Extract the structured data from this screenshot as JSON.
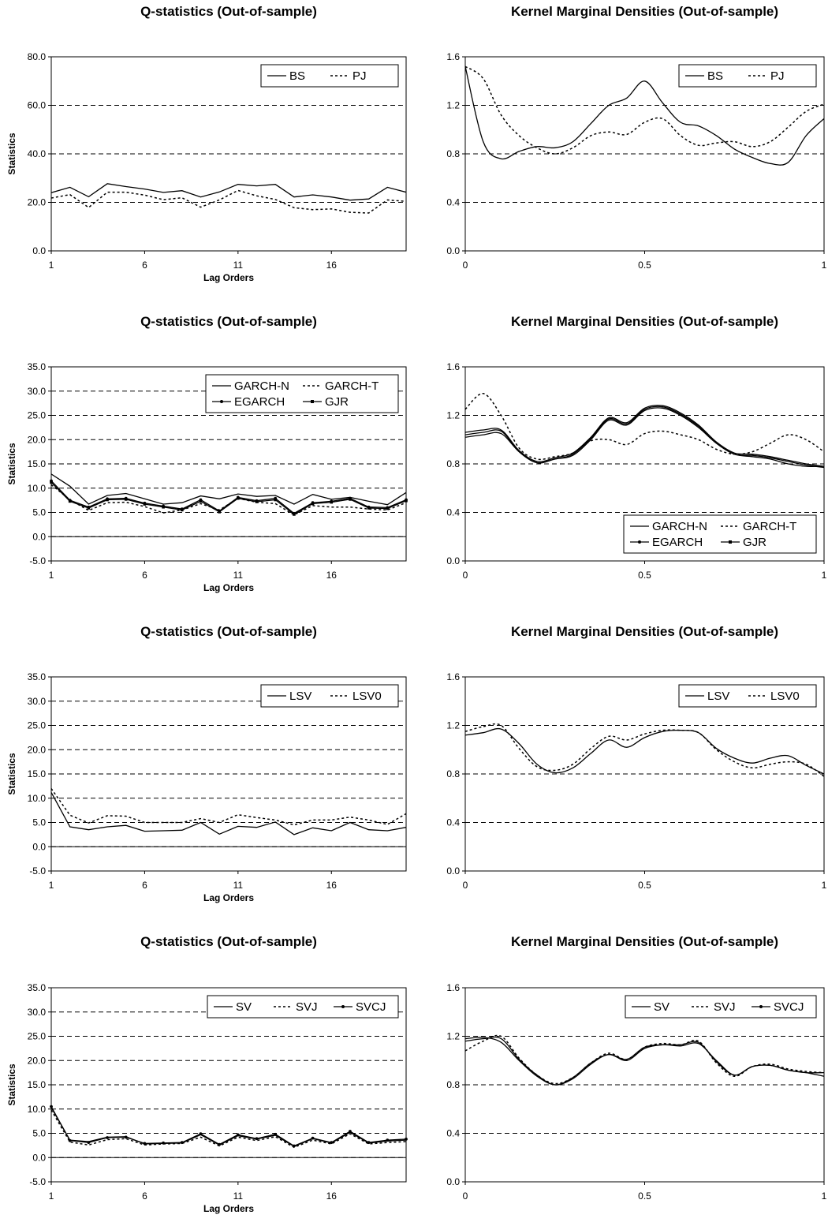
{
  "chart_data": [
    {
      "id": "q1",
      "type": "line",
      "title": "Q-statistics (Out-of-sample)",
      "xlabel": "Lag Orders",
      "ylabel": "Statistics",
      "xlim": [
        1,
        20
      ],
      "ylim": [
        0,
        80
      ],
      "yticks": [
        "0.0",
        "20.0",
        "40.0",
        "60.0",
        "80.0"
      ],
      "xticks": [
        "1",
        "6",
        "11",
        "16"
      ],
      "xtick_values": [
        1,
        6,
        11,
        16
      ],
      "grid": "horizontal-dashed",
      "legend": "top-right",
      "legend_cols": 2,
      "series": [
        {
          "name": "BS",
          "style": "solid",
          "values": [
            24.0,
            26.2,
            22.3,
            27.7,
            26.5,
            25.5,
            24.1,
            24.8,
            22.2,
            24.3,
            27.4,
            26.8,
            27.4,
            22.2,
            23.1,
            22.2,
            20.9,
            21.4,
            26.2,
            24.2
          ]
        },
        {
          "name": "PJ",
          "style": "dotted",
          "values": [
            21.8,
            23.2,
            17.9,
            24.2,
            24.2,
            23.0,
            21.1,
            21.9,
            18.0,
            21.0,
            24.9,
            22.7,
            21.2,
            17.8,
            17.0,
            17.3,
            15.9,
            15.6,
            21.0,
            20.4
          ]
        }
      ]
    },
    {
      "id": "k1",
      "type": "line",
      "title": "Kernel Marginal Densities (Out-of-sample)",
      "xlabel": "",
      "ylabel": "",
      "xlim": [
        0,
        1
      ],
      "ylim": [
        0,
        1.6
      ],
      "yticks": [
        "0.0",
        "0.4",
        "0.8",
        "1.2",
        "1.6"
      ],
      "xticks": [
        "0",
        "0.5",
        "1"
      ],
      "xtick_values": [
        0,
        0.5,
        1
      ],
      "grid": "horizontal-dashed",
      "legend": "top-right",
      "legend_cols": 2,
      "x": [
        0,
        0.05,
        0.1,
        0.15,
        0.2,
        0.25,
        0.3,
        0.35,
        0.4,
        0.45,
        0.5,
        0.55,
        0.6,
        0.65,
        0.7,
        0.75,
        0.8,
        0.85,
        0.9,
        0.95,
        1.0
      ],
      "series": [
        {
          "name": "BS",
          "style": "solid",
          "values": [
            1.52,
            0.9,
            0.76,
            0.82,
            0.86,
            0.85,
            0.9,
            1.05,
            1.2,
            1.26,
            1.4,
            1.22,
            1.06,
            1.03,
            0.95,
            0.84,
            0.77,
            0.72,
            0.73,
            0.95,
            1.09
          ]
        },
        {
          "name": "PJ",
          "style": "dotted",
          "values": [
            1.52,
            1.42,
            1.12,
            0.95,
            0.85,
            0.8,
            0.85,
            0.95,
            0.98,
            0.96,
            1.06,
            1.09,
            0.95,
            0.87,
            0.89,
            0.9,
            0.86,
            0.9,
            1.02,
            1.15,
            1.21
          ]
        }
      ]
    },
    {
      "id": "q2",
      "type": "line",
      "title": "Q-statistics (Out-of-sample)",
      "xlabel": "Lag Orders",
      "ylabel": "Statistics",
      "xlim": [
        1,
        20
      ],
      "ylim": [
        -5,
        35
      ],
      "yticks": [
        "-5.0",
        "0.0",
        "5.0",
        "10.0",
        "15.0",
        "20.0",
        "25.0",
        "30.0",
        "35.0"
      ],
      "xticks": [
        "1",
        "6",
        "11",
        "16"
      ],
      "xtick_values": [
        1,
        6,
        11,
        16
      ],
      "grid": "horizontal-dashed",
      "zero_line": true,
      "legend": "top-right",
      "legend_cols": 2,
      "series": [
        {
          "name": "GARCH-N",
          "style": "solid",
          "values": [
            12.9,
            10.4,
            6.7,
            8.5,
            8.9,
            7.8,
            6.7,
            7.0,
            8.4,
            7.8,
            8.8,
            8.3,
            8.5,
            6.7,
            8.7,
            7.7,
            8.1,
            7.3,
            6.6,
            9.1
          ]
        },
        {
          "name": "GARCH-T",
          "style": "dotted",
          "values": [
            10.7,
            7.6,
            5.4,
            7.0,
            7.1,
            6.2,
            4.9,
            5.5,
            6.8,
            5.5,
            7.9,
            7.1,
            6.8,
            4.5,
            6.4,
            6.1,
            6.1,
            5.7,
            5.5,
            7.0
          ]
        },
        {
          "name": "EGARCH",
          "style": "solid-marker",
          "values": [
            11.5,
            7.5,
            6.1,
            7.8,
            7.9,
            6.9,
            6.3,
            5.7,
            7.6,
            5.3,
            8.1,
            7.4,
            7.9,
            4.8,
            7.0,
            7.3,
            7.9,
            6.1,
            6.0,
            7.6
          ]
        },
        {
          "name": "GJR",
          "style": "solid-square",
          "values": [
            11.2,
            7.3,
            5.9,
            7.6,
            7.7,
            6.7,
            6.1,
            5.5,
            7.3,
            5.1,
            7.9,
            7.2,
            7.6,
            4.6,
            6.8,
            7.1,
            7.7,
            5.9,
            5.8,
            7.4
          ]
        }
      ]
    },
    {
      "id": "k2",
      "type": "line",
      "title": "Kernel Marginal Densities (Out-of-sample)",
      "xlabel": "",
      "ylabel": "",
      "xlim": [
        0,
        1
      ],
      "ylim": [
        0,
        1.6
      ],
      "yticks": [
        "0.0",
        "0.4",
        "0.8",
        "1.2",
        "1.6"
      ],
      "xticks": [
        "0",
        "0.5",
        "1"
      ],
      "xtick_values": [
        0,
        0.5,
        1
      ],
      "grid": "horizontal-dashed",
      "legend": "bottom-right",
      "legend_cols": 2,
      "x": [
        0,
        0.05,
        0.1,
        0.15,
        0.2,
        0.25,
        0.3,
        0.35,
        0.4,
        0.45,
        0.5,
        0.55,
        0.6,
        0.65,
        0.7,
        0.75,
        0.8,
        0.85,
        0.9,
        0.95,
        1.0
      ],
      "series": [
        {
          "name": "GARCH-N",
          "style": "solid",
          "values": [
            1.02,
            1.04,
            1.05,
            0.9,
            0.81,
            0.84,
            0.87,
            1.0,
            1.16,
            1.12,
            1.24,
            1.26,
            1.2,
            1.1,
            0.97,
            0.88,
            0.86,
            0.84,
            0.8,
            0.78,
            0.78
          ]
        },
        {
          "name": "GARCH-T",
          "style": "dotted",
          "values": [
            1.25,
            1.38,
            1.2,
            0.93,
            0.84,
            0.86,
            0.89,
            0.99,
            1.0,
            0.96,
            1.05,
            1.07,
            1.04,
            1.0,
            0.92,
            0.88,
            0.9,
            0.97,
            1.04,
            1.0,
            0.9
          ]
        },
        {
          "name": "EGARCH",
          "style": "solid-marker",
          "values": [
            1.06,
            1.08,
            1.08,
            0.91,
            0.82,
            0.85,
            0.89,
            1.02,
            1.18,
            1.14,
            1.26,
            1.28,
            1.22,
            1.12,
            0.98,
            0.89,
            0.88,
            0.86,
            0.83,
            0.8,
            0.78
          ]
        },
        {
          "name": "GJR",
          "style": "solid-square",
          "values": [
            1.04,
            1.06,
            1.07,
            0.9,
            0.81,
            0.84,
            0.88,
            1.01,
            1.17,
            1.13,
            1.25,
            1.27,
            1.21,
            1.11,
            0.97,
            0.88,
            0.87,
            0.85,
            0.82,
            0.79,
            0.77
          ]
        }
      ]
    },
    {
      "id": "q3",
      "type": "line",
      "title": "Q-statistics (Out-of-sample)",
      "xlabel": "Lag Orders",
      "ylabel": "Statistics",
      "xlim": [
        1,
        20
      ],
      "ylim": [
        -5,
        35
      ],
      "yticks": [
        "-5.0",
        "0.0",
        "5.0",
        "10.0",
        "15.0",
        "20.0",
        "25.0",
        "30.0",
        "35.0"
      ],
      "xticks": [
        "1",
        "6",
        "11",
        "16"
      ],
      "xtick_values": [
        1,
        6,
        11,
        16
      ],
      "grid": "horizontal-dashed",
      "zero_line": true,
      "legend": "top-right",
      "legend_cols": 2,
      "series": [
        {
          "name": "LSV",
          "style": "solid",
          "values": [
            11.2,
            4.1,
            3.5,
            4.1,
            4.4,
            3.2,
            3.3,
            3.4,
            5.0,
            2.6,
            4.2,
            4.0,
            5.1,
            2.5,
            3.9,
            3.3,
            5.0,
            3.5,
            3.3,
            4.0
          ]
        },
        {
          "name": "LSV0",
          "style": "dotted",
          "values": [
            12.0,
            6.5,
            4.9,
            6.4,
            6.3,
            5.0,
            5.0,
            5.0,
            5.8,
            5.0,
            6.6,
            6.0,
            5.5,
            4.5,
            5.5,
            5.5,
            6.1,
            5.5,
            4.6,
            6.8
          ]
        }
      ]
    },
    {
      "id": "k3",
      "type": "line",
      "title": "Kernel Marginal Densities (Out-of-sample)",
      "xlabel": "",
      "ylabel": "",
      "xlim": [
        0,
        1
      ],
      "ylim": [
        0,
        1.6
      ],
      "yticks": [
        "0.0",
        "0.4",
        "0.8",
        "1.2",
        "1.6"
      ],
      "xticks": [
        "0",
        "0.5",
        "1"
      ],
      "xtick_values": [
        0,
        0.5,
        1
      ],
      "grid": "horizontal-dashed",
      "legend": "top-right",
      "legend_cols": 2,
      "x": [
        0,
        0.05,
        0.1,
        0.15,
        0.2,
        0.25,
        0.3,
        0.35,
        0.4,
        0.45,
        0.5,
        0.55,
        0.6,
        0.65,
        0.7,
        0.75,
        0.8,
        0.85,
        0.9,
        0.95,
        1.0
      ],
      "series": [
        {
          "name": "LSV",
          "style": "solid",
          "values": [
            1.12,
            1.14,
            1.17,
            1.05,
            0.88,
            0.81,
            0.85,
            0.97,
            1.08,
            1.02,
            1.1,
            1.15,
            1.16,
            1.14,
            1.01,
            0.93,
            0.89,
            0.93,
            0.95,
            0.87,
            0.8
          ]
        },
        {
          "name": "LSV0",
          "style": "dotted",
          "values": [
            1.15,
            1.19,
            1.2,
            1.01,
            0.86,
            0.83,
            0.88,
            1.01,
            1.11,
            1.08,
            1.13,
            1.16,
            1.16,
            1.14,
            1.0,
            0.9,
            0.85,
            0.88,
            0.9,
            0.88,
            0.78
          ]
        }
      ]
    },
    {
      "id": "q4",
      "type": "line",
      "title": "Q-statistics (Out-of-sample)",
      "xlabel": "Lag Orders",
      "ylabel": "Statistics",
      "xlim": [
        1,
        20
      ],
      "ylim": [
        -5,
        35
      ],
      "yticks": [
        "-5.0",
        "0.0",
        "5.0",
        "10.0",
        "15.0",
        "20.0",
        "25.0",
        "30.0",
        "35.0"
      ],
      "xticks": [
        "1",
        "6",
        "11",
        "16"
      ],
      "xtick_values": [
        1,
        6,
        11,
        16
      ],
      "grid": "horizontal-dashed",
      "zero_line": true,
      "legend": "top-right",
      "legend_cols": 3,
      "series": [
        {
          "name": "SV",
          "style": "solid",
          "values": [
            10.3,
            3.6,
            3.3,
            4.2,
            4.3,
            2.8,
            2.9,
            3.0,
            4.7,
            2.6,
            4.5,
            3.8,
            4.6,
            2.3,
            3.9,
            3.0,
            5.2,
            3.0,
            3.4,
            3.6
          ]
        },
        {
          "name": "SVJ",
          "style": "dotted",
          "values": [
            9.8,
            3.2,
            2.6,
            3.7,
            3.9,
            2.6,
            2.8,
            2.9,
            4.2,
            2.4,
            4.2,
            3.5,
            4.3,
            2.1,
            3.6,
            2.8,
            4.9,
            2.8,
            3.1,
            3.3
          ]
        },
        {
          "name": "SVCJ",
          "style": "solid-marker",
          "values": [
            10.5,
            3.5,
            3.1,
            4.1,
            4.2,
            2.9,
            3.0,
            3.1,
            4.9,
            2.7,
            4.7,
            3.9,
            4.8,
            2.4,
            4.0,
            3.1,
            5.4,
            3.1,
            3.6,
            3.8
          ]
        }
      ]
    },
    {
      "id": "k4",
      "type": "line",
      "title": "Kernel Marginal Densities (Out-of-sample)",
      "xlabel": "",
      "ylabel": "",
      "xlim": [
        0,
        1
      ],
      "ylim": [
        0,
        1.6
      ],
      "yticks": [
        "0.0",
        "0.4",
        "0.8",
        "1.2",
        "1.6"
      ],
      "xticks": [
        "0",
        "0.5",
        "1"
      ],
      "xtick_values": [
        0,
        0.5,
        1
      ],
      "grid": "horizontal-dashed",
      "legend": "top-right",
      "legend_cols": 3,
      "x": [
        0,
        0.05,
        0.1,
        0.15,
        0.2,
        0.25,
        0.3,
        0.35,
        0.4,
        0.45,
        0.5,
        0.55,
        0.6,
        0.65,
        0.7,
        0.75,
        0.8,
        0.85,
        0.9,
        0.95,
        1.0
      ],
      "series": [
        {
          "name": "SV",
          "style": "solid",
          "values": [
            1.18,
            1.19,
            1.15,
            1.0,
            0.87,
            0.8,
            0.85,
            0.97,
            1.05,
            1.0,
            1.1,
            1.13,
            1.12,
            1.14,
            1.0,
            0.88,
            0.95,
            0.96,
            0.92,
            0.9,
            0.87
          ]
        },
        {
          "name": "SVJ",
          "style": "dotted",
          "values": [
            1.08,
            1.16,
            1.2,
            1.02,
            0.88,
            0.81,
            0.86,
            0.98,
            1.06,
            1.01,
            1.11,
            1.14,
            1.13,
            1.16,
            0.98,
            0.87,
            0.95,
            0.97,
            0.93,
            0.91,
            0.9
          ]
        },
        {
          "name": "SVCJ",
          "style": "solid-marker",
          "values": [
            1.16,
            1.18,
            1.18,
            1.01,
            0.88,
            0.8,
            0.86,
            0.98,
            1.05,
            1.01,
            1.11,
            1.13,
            1.13,
            1.15,
            0.99,
            0.88,
            0.95,
            0.96,
            0.92,
            0.9,
            0.9
          ]
        }
      ]
    }
  ]
}
